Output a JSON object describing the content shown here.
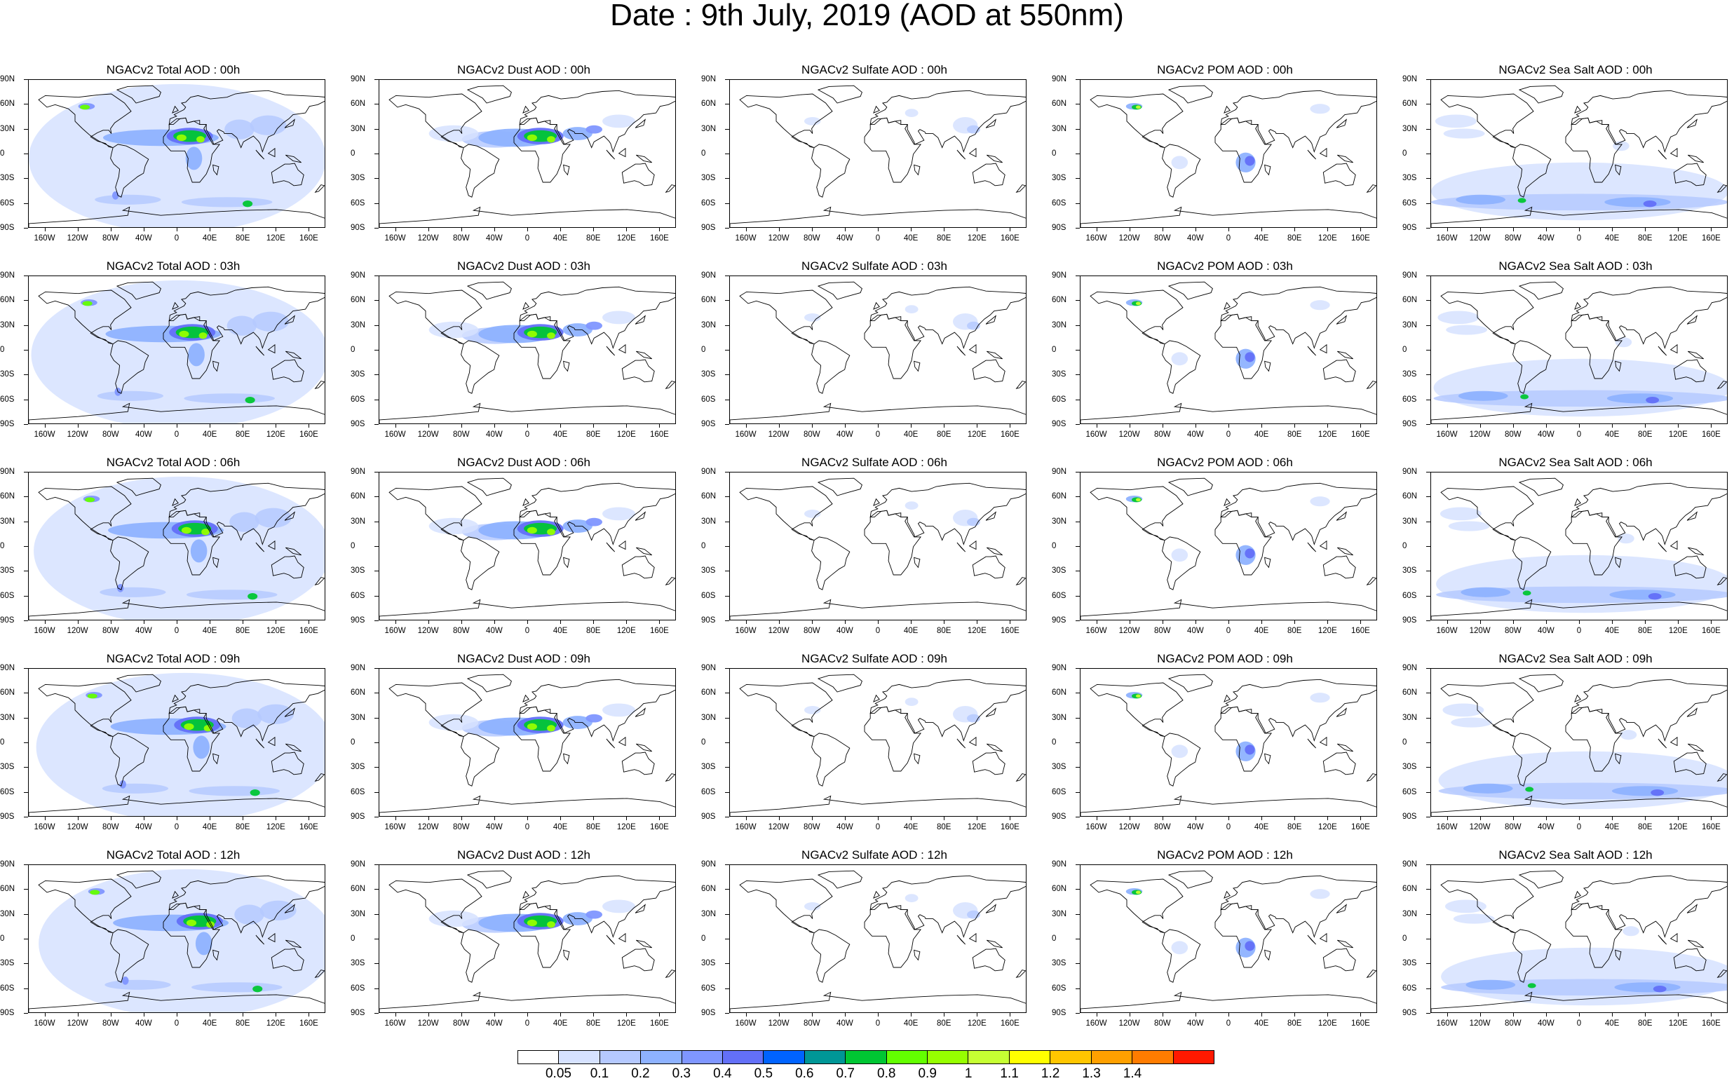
{
  "title": "Date : 9th July, 2019 (AOD at 550nm)",
  "lat_labels": [
    "90N",
    "60N",
    "30N",
    "0",
    "30S",
    "60S",
    "90S"
  ],
  "lon_labels": [
    "160W",
    "120W",
    "80W",
    "40W",
    "0",
    "40E",
    "80E",
    "120E",
    "160E"
  ],
  "lon_values": [
    -160,
    -120,
    -80,
    -40,
    0,
    40,
    80,
    120,
    160
  ],
  "lat_values": [
    90,
    60,
    30,
    0,
    -30,
    -60,
    -90
  ],
  "species": [
    "total",
    "dust",
    "sulfate",
    "pom",
    "seasalt"
  ],
  "panels": [
    [
      "NGACv2 Total AOD : 00h",
      "NGACv2 Dust AOD : 00h",
      "NGACv2 Sulfate AOD : 00h",
      "NGACv2 POM AOD : 00h",
      "NGACv2 Sea Salt AOD : 00h"
    ],
    [
      "NGACv2 Total AOD : 03h",
      "NGACv2 Dust AOD : 03h",
      "NGACv2 Sulfate AOD : 03h",
      "NGACv2 POM AOD : 03h",
      "NGACv2 Sea Salt AOD : 03h"
    ],
    [
      "NGACv2 Total AOD : 06h",
      "NGACv2 Dust AOD : 06h",
      "NGACv2 Sulfate AOD : 06h",
      "NGACv2 POM AOD : 06h",
      "NGACv2 Sea Salt AOD : 06h"
    ],
    [
      "NGACv2 Total AOD : 09h",
      "NGACv2 Dust AOD : 09h",
      "NGACv2 Sulfate AOD : 09h",
      "NGACv2 POM AOD : 09h",
      "NGACv2 Sea Salt  AOD : 09h"
    ],
    [
      "NGACv2 Total AOD : 12h",
      "NGACv2 Dust AOD : 12h",
      "NGACv2 Sulfate AOD : 12h",
      "NGACv2 POM  AOD : 12h",
      "NGACv2 Sea Salt AOD : 12h"
    ]
  ],
  "colorbar": {
    "labels": [
      "0.05",
      "0.1",
      "0.2",
      "0.3",
      "0.4",
      "0.5",
      "0.6",
      "0.7",
      "0.8",
      "0.9",
      "1",
      "1.1",
      "1.2",
      "1.3",
      "1.4"
    ],
    "colors": [
      "#ffffff",
      "#d6e2ff",
      "#b5c9ff",
      "#8eb2ff",
      "#7f96ff",
      "#6370f8",
      "#0063ff",
      "#009696",
      "#00c633",
      "#63ff00",
      "#96ff00",
      "#c6ff33",
      "#ffff00",
      "#ffc600",
      "#ffa000",
      "#ff7c00",
      "#ff1900"
    ]
  }
}
